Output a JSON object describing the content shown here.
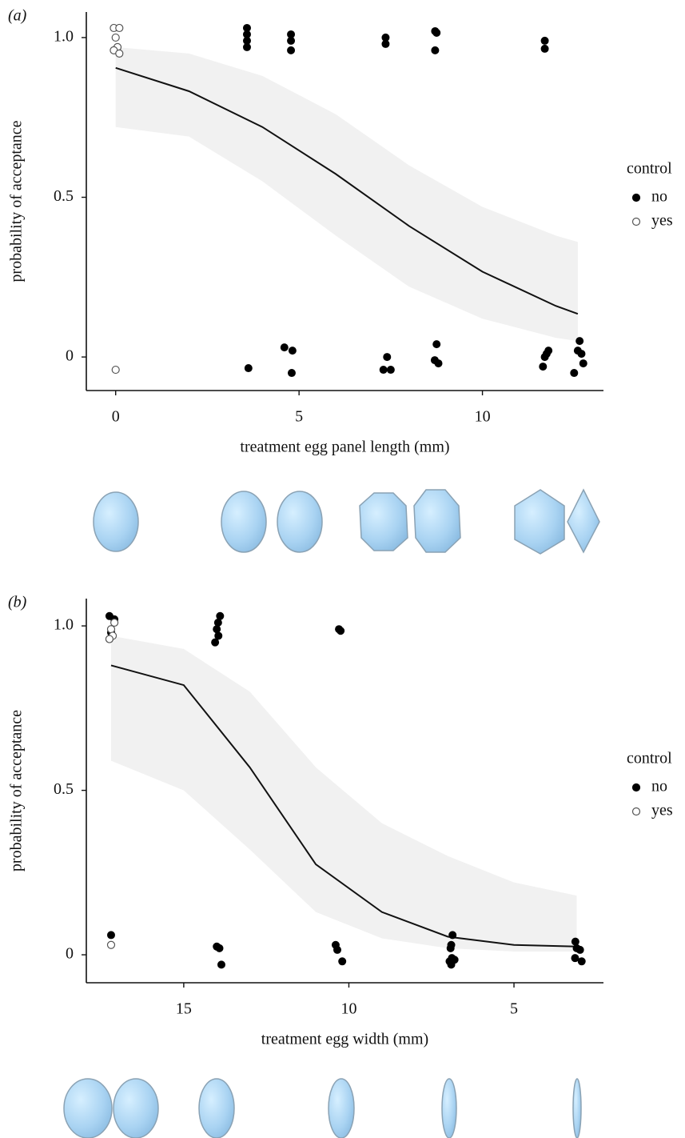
{
  "chart_data": [
    {
      "type": "scatter",
      "panel_label": "(a)",
      "x_label": "treatment egg panel length (mm)",
      "y_label": "probability of acceptance",
      "xlim": [
        -0.8,
        13.3
      ],
      "ylim": [
        -0.105,
        1.08
      ],
      "xticks": [
        0,
        5,
        10
      ],
      "yticks": [
        0,
        0.5,
        {
          "value": 1,
          "label": "1.0"
        }
      ],
      "legend_title": "control",
      "series": [
        {
          "name": "no",
          "color": "#000000",
          "marker": "filled",
          "x": [
            3.58,
            3.58,
            3.58,
            3.58,
            3.62,
            4.78,
            4.78,
            4.78,
            4.6,
            4.82,
            4.8,
            7.36,
            7.36,
            7.4,
            7.3,
            7.5,
            8.71,
            8.75,
            8.71,
            8.75,
            8.7,
            8.8,
            11.7,
            11.7,
            11.8,
            11.75,
            11.7,
            11.65,
            12.65,
            12.6,
            12.7,
            12.75,
            12.5
          ],
          "values": [
            1.03,
            1.01,
            0.99,
            0.97,
            -0.035,
            1.01,
            0.99,
            0.96,
            0.03,
            0.02,
            -0.05,
            1.0,
            0.98,
            0.0,
            -0.04,
            -0.04,
            1.02,
            1.015,
            0.96,
            0.04,
            -0.01,
            -0.02,
            0.99,
            0.965,
            0.02,
            0.01,
            0.0,
            -0.03,
            0.05,
            0.02,
            0.01,
            -0.02,
            -0.05
          ]
        },
        {
          "name": "yes",
          "color": "#555555",
          "marker": "open",
          "x": [
            -0.05,
            0.1,
            0.0,
            0.05,
            -0.05,
            0.1,
            0.0
          ],
          "values": [
            1.03,
            1.03,
            1.0,
            0.97,
            0.96,
            0.95,
            -0.04
          ]
        }
      ],
      "fit": {
        "x": [
          0,
          2,
          4,
          6,
          8,
          10,
          12,
          12.6
        ],
        "y": [
          0.905,
          0.832,
          0.72,
          0.573,
          0.41,
          0.267,
          0.16,
          0.135
        ],
        "lower": [
          0.72,
          0.69,
          0.55,
          0.38,
          0.22,
          0.12,
          0.06,
          0.05
        ],
        "upper": [
          0.97,
          0.95,
          0.88,
          0.76,
          0.6,
          0.47,
          0.38,
          0.36
        ]
      }
    },
    {
      "type": "scatter",
      "panel_label": "(b)",
      "x_label": "treatment egg width (mm)",
      "y_label": "probability of acceptance",
      "xlim": [
        17.95,
        2.29
      ],
      "ylim": [
        -0.085,
        1.083
      ],
      "xticks": [
        15,
        10,
        5
      ],
      "yticks": [
        0,
        0.5,
        {
          "value": 1,
          "label": "1.0"
        }
      ],
      "legend_title": "control",
      "series": [
        {
          "name": "no",
          "color": "#000000",
          "marker": "filled",
          "x": [
            17.25,
            17.1,
            17.2,
            17.25,
            17.2,
            13.9,
            13.96,
            14.0,
            14.05,
            13.95,
            14.0,
            13.92,
            13.86,
            10.3,
            10.25,
            10.4,
            10.35,
            10.2,
            6.86,
            6.9,
            6.92,
            6.88,
            6.8,
            6.95,
            6.9,
            3.14,
            3.1,
            3.0,
            3.15,
            2.95
          ],
          "values": [
            1.03,
            1.02,
            0.98,
            0.96,
            0.06,
            1.03,
            1.01,
            0.99,
            0.95,
            0.97,
            0.025,
            0.02,
            -0.03,
            0.99,
            0.985,
            0.03,
            0.015,
            -0.02,
            0.06,
            0.03,
            0.02,
            -0.01,
            -0.015,
            -0.02,
            -0.03,
            0.04,
            0.02,
            0.015,
            -0.01,
            -0.02
          ]
        },
        {
          "name": "yes",
          "color": "#555555",
          "marker": "open",
          "x": [
            17.1,
            17.2,
            17.15,
            17.25,
            17.2
          ],
          "values": [
            1.01,
            0.99,
            0.97,
            0.96,
            0.03
          ]
        }
      ],
      "fit": {
        "x": [
          17.2,
          15,
          13,
          11,
          9,
          7,
          5,
          3.1
        ],
        "y": [
          0.88,
          0.82,
          0.57,
          0.275,
          0.13,
          0.055,
          0.03,
          0.025
        ],
        "lower": [
          0.59,
          0.5,
          0.32,
          0.13,
          0.05,
          0.02,
          0.01,
          0.01
        ],
        "upper": [
          0.97,
          0.93,
          0.8,
          0.57,
          0.4,
          0.3,
          0.22,
          0.18
        ]
      }
    }
  ]
}
